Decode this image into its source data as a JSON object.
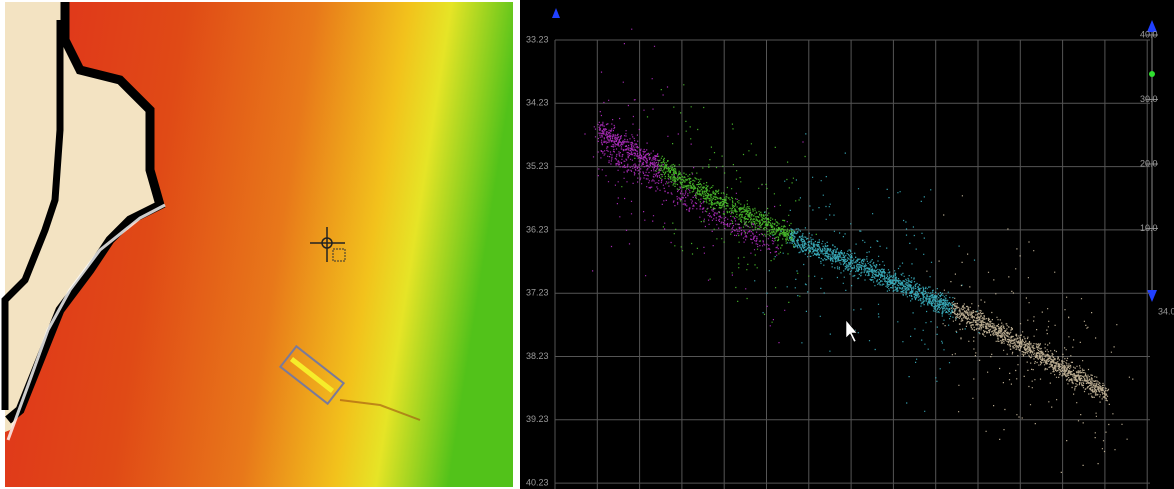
{
  "profile": {
    "left_axis": [
      "33.23",
      "34.23",
      "35.23",
      "36.23",
      "37.23",
      "38.23",
      "39.23",
      "40.23"
    ],
    "right_axis": [
      "40.0",
      "30.0",
      "20.0",
      "10.0"
    ],
    "right_axis_bottom": "34.0"
  }
}
